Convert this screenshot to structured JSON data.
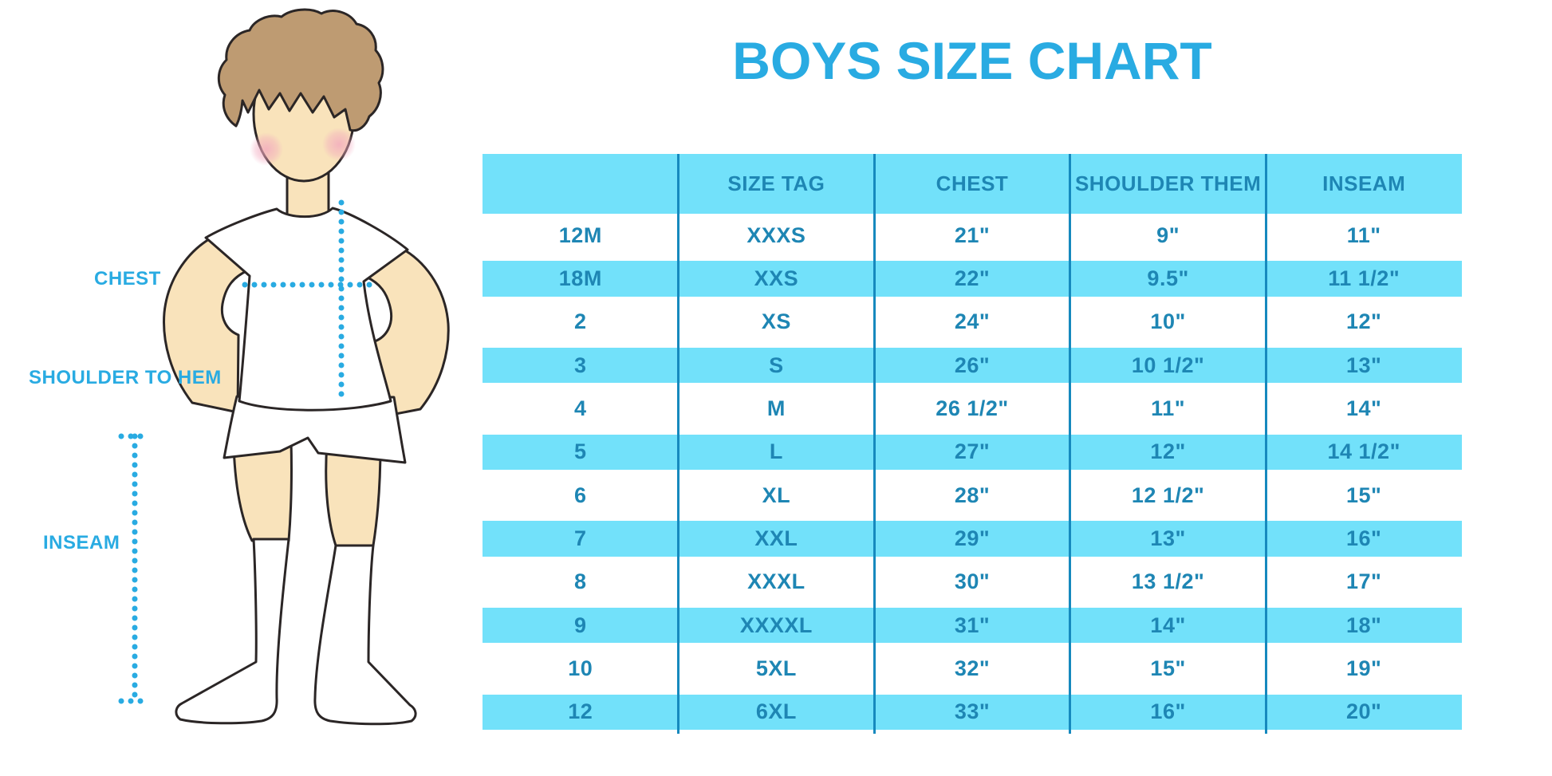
{
  "title": "BOYS SIZE CHART",
  "diagram": {
    "chest_label": "CHEST",
    "shoulder_to_hem_label": "SHOULDER TO HEM",
    "inseam_label": "INSEAM"
  },
  "chart_data": {
    "type": "table",
    "title": "BOYS SIZE CHART",
    "columns": [
      "",
      "SIZE TAG",
      "CHEST",
      "SHOULDER THEM",
      "INSEAM"
    ],
    "rows": [
      [
        "12M",
        "XXXS",
        "21\"",
        "9\"",
        "11\""
      ],
      [
        "18M",
        "XXS",
        "22\"",
        "9.5\"",
        "11 1/2\""
      ],
      [
        "2",
        "XS",
        "24\"",
        "10\"",
        "12\""
      ],
      [
        "3",
        "S",
        "26\"",
        "10 1/2\"",
        "13\""
      ],
      [
        "4",
        "M",
        "26 1/2\"",
        "11\"",
        "14\""
      ],
      [
        "5",
        "L",
        "27\"",
        "12\"",
        "14 1/2\""
      ],
      [
        "6",
        "XL",
        "28\"",
        "12 1/2\"",
        "15\""
      ],
      [
        "7",
        "XXL",
        "29\"",
        "13\"",
        "16\""
      ],
      [
        "8",
        "XXXL",
        "30\"",
        "13 1/2\"",
        "17\""
      ],
      [
        "9",
        "XXXXL",
        "31\"",
        "14\"",
        "18\""
      ],
      [
        "10",
        "5XL",
        "32\"",
        "15\"",
        "19\""
      ],
      [
        "12",
        "6XL",
        "33\"",
        "16\"",
        "20\""
      ]
    ],
    "row_stripe_pattern": "alternating white / cyan starting with white",
    "legend_position": "none",
    "grid": "vertical column dividers only"
  },
  "colors": {
    "accent_blue": "#29ABE2",
    "stripe_cyan": "#72E1FA",
    "table_text": "#1E86B4",
    "divider_blue": "#1689BE",
    "skin": "#F9E3BB",
    "hair": "#BE9B72",
    "outline": "#2B2626",
    "cheek_pink": "#F2A8BE"
  }
}
